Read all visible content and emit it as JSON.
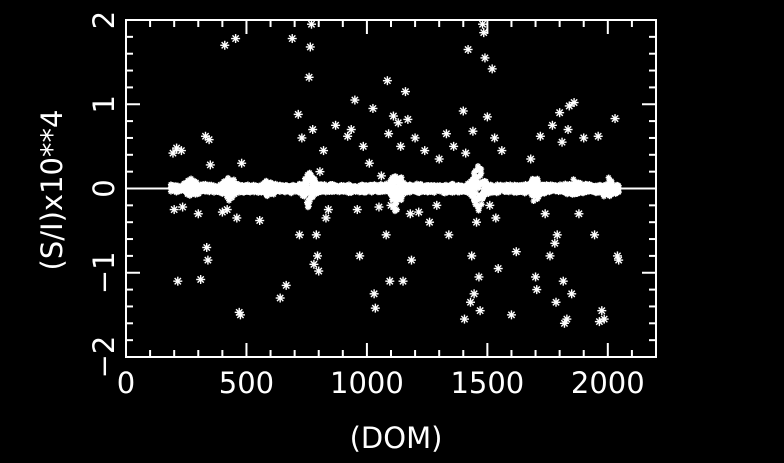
{
  "chart_data": {
    "type": "scatter",
    "title": "",
    "xlabel": "(DOM)",
    "ylabel": "(S/I)x10**4",
    "xlim": [
      0,
      2200
    ],
    "ylim": [
      -2,
      2
    ],
    "x_ticks": [
      0,
      500,
      1000,
      1500,
      2000
    ],
    "x_tick_labels": [
      "0",
      "500",
      "1000",
      "1500",
      "2000"
    ],
    "y_ticks": [
      -2,
      -1,
      0,
      1,
      2
    ],
    "y_tick_labels": [
      "−2",
      "−1",
      "0",
      "1",
      "2"
    ],
    "grid": false,
    "zero_line": {
      "y": 0,
      "x_from": 0,
      "x_to": 2200
    },
    "colors": {
      "background": "#000000",
      "foreground": "#ffffff"
    },
    "band": {
      "description": "dense cluster of points near zero",
      "x_range": [
        185,
        2045
      ],
      "y_half_width": 0.06,
      "bumps": [
        {
          "x": 270,
          "amplitude": 0.08
        },
        {
          "x": 430,
          "amplitude": 0.12
        },
        {
          "x": 590,
          "amplitude": 0.05
        },
        {
          "x": 760,
          "amplitude": 0.2
        },
        {
          "x": 1120,
          "amplitude": 0.28
        },
        {
          "x": 1460,
          "amplitude": 0.32
        },
        {
          "x": 1700,
          "amplitude": 0.12
        },
        {
          "x": 1860,
          "amplitude": 0.1
        },
        {
          "x": 2000,
          "amplitude": 0.08
        }
      ]
    },
    "outliers": [
      [
        195,
        0.42
      ],
      [
        210,
        0.48
      ],
      [
        230,
        0.45
      ],
      [
        200,
        -0.25
      ],
      [
        215,
        -1.1
      ],
      [
        235,
        -0.22
      ],
      [
        300,
        -0.3
      ],
      [
        310,
        -1.08
      ],
      [
        330,
        0.62
      ],
      [
        345,
        0.58
      ],
      [
        335,
        -0.7
      ],
      [
        340,
        -0.85
      ],
      [
        350,
        0.28
      ],
      [
        410,
        1.7
      ],
      [
        455,
        1.78
      ],
      [
        400,
        -0.28
      ],
      [
        420,
        -0.25
      ],
      [
        470,
        -1.47
      ],
      [
        475,
        -1.5
      ],
      [
        460,
        -0.35
      ],
      [
        480,
        0.3
      ],
      [
        555,
        -0.38
      ],
      [
        640,
        -1.3
      ],
      [
        665,
        -1.15
      ],
      [
        690,
        1.78
      ],
      [
        715,
        0.88
      ],
      [
        720,
        -0.55
      ],
      [
        730,
        0.6
      ],
      [
        760,
        1.32
      ],
      [
        765,
        1.68
      ],
      [
        770,
        1.95
      ],
      [
        775,
        0.7
      ],
      [
        780,
        -0.9
      ],
      [
        790,
        -0.55
      ],
      [
        795,
        -0.8
      ],
      [
        800,
        -0.98
      ],
      [
        805,
        0.2
      ],
      [
        820,
        0.45
      ],
      [
        830,
        -0.35
      ],
      [
        840,
        -0.25
      ],
      [
        870,
        0.75
      ],
      [
        920,
        0.62
      ],
      [
        935,
        0.7
      ],
      [
        950,
        1.05
      ],
      [
        960,
        -0.25
      ],
      [
        970,
        -0.8
      ],
      [
        985,
        0.5
      ],
      [
        1010,
        0.3
      ],
      [
        1025,
        0.95
      ],
      [
        1030,
        -1.25
      ],
      [
        1035,
        -1.42
      ],
      [
        1050,
        -0.22
      ],
      [
        1060,
        0.15
      ],
      [
        1080,
        -0.55
      ],
      [
        1085,
        1.28
      ],
      [
        1090,
        0.65
      ],
      [
        1095,
        -1.1
      ],
      [
        1100,
        -0.2
      ],
      [
        1110,
        0.86
      ],
      [
        1120,
        -0.15
      ],
      [
        1130,
        0.78
      ],
      [
        1140,
        0.5
      ],
      [
        1150,
        -1.1
      ],
      [
        1160,
        1.15
      ],
      [
        1170,
        0.82
      ],
      [
        1180,
        -0.3
      ],
      [
        1185,
        -0.85
      ],
      [
        1200,
        0.6
      ],
      [
        1215,
        -0.28
      ],
      [
        1240,
        0.45
      ],
      [
        1260,
        -0.4
      ],
      [
        1290,
        -0.2
      ],
      [
        1300,
        0.35
      ],
      [
        1330,
        0.65
      ],
      [
        1340,
        -0.55
      ],
      [
        1360,
        0.5
      ],
      [
        1400,
        0.92
      ],
      [
        1405,
        -1.55
      ],
      [
        1410,
        0.42
      ],
      [
        1420,
        1.65
      ],
      [
        1430,
        -1.35
      ],
      [
        1435,
        -0.8
      ],
      [
        1440,
        0.68
      ],
      [
        1445,
        -1.25
      ],
      [
        1455,
        -0.4
      ],
      [
        1465,
        -1.05
      ],
      [
        1470,
        -1.45
      ],
      [
        1480,
        1.95
      ],
      [
        1485,
        1.85
      ],
      [
        1490,
        1.55
      ],
      [
        1500,
        0.85
      ],
      [
        1510,
        -0.2
      ],
      [
        1520,
        1.42
      ],
      [
        1530,
        0.6
      ],
      [
        1535,
        -0.35
      ],
      [
        1545,
        -0.95
      ],
      [
        1560,
        0.45
      ],
      [
        1600,
        -1.5
      ],
      [
        1620,
        -0.75
      ],
      [
        1680,
        0.35
      ],
      [
        1700,
        -1.05
      ],
      [
        1705,
        -1.2
      ],
      [
        1720,
        0.62
      ],
      [
        1740,
        -0.3
      ],
      [
        1760,
        -0.8
      ],
      [
        1770,
        0.75
      ],
      [
        1780,
        -0.65
      ],
      [
        1785,
        -1.35
      ],
      [
        1790,
        -0.55
      ],
      [
        1800,
        0.9
      ],
      [
        1810,
        0.55
      ],
      [
        1815,
        -1.1
      ],
      [
        1820,
        -1.6
      ],
      [
        1830,
        -1.55
      ],
      [
        1835,
        0.7
      ],
      [
        1840,
        0.98
      ],
      [
        1850,
        -1.25
      ],
      [
        1860,
        1.02
      ],
      [
        1880,
        -0.3
      ],
      [
        1900,
        0.6
      ],
      [
        1945,
        -0.55
      ],
      [
        1960,
        0.62
      ],
      [
        1965,
        -1.58
      ],
      [
        1975,
        -1.45
      ],
      [
        1985,
        -1.55
      ],
      [
        2030,
        0.83
      ],
      [
        2040,
        -0.8
      ],
      [
        2045,
        -0.85
      ]
    ]
  }
}
